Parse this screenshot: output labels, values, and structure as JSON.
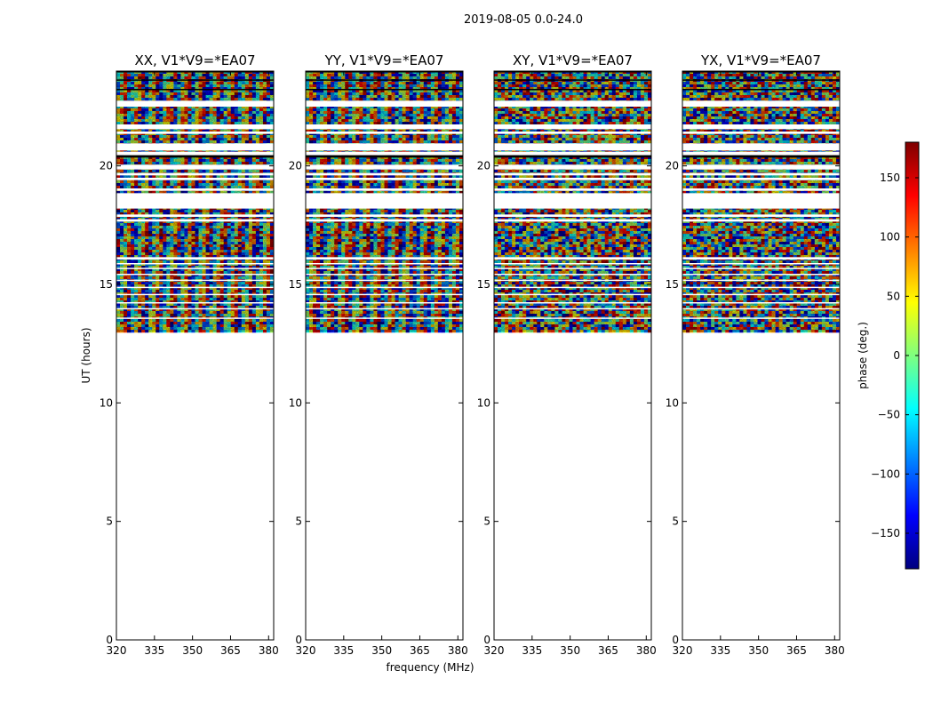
{
  "chart_data": {
    "type": "heatmap",
    "suptitle": "2019-08-05 0.0-24.0",
    "xlabel": "frequency (MHz)",
    "ylabel": "UT (hours)",
    "xlim": [
      320,
      382
    ],
    "ylim": [
      0,
      24
    ],
    "xticks": [
      320,
      335,
      350,
      365,
      380
    ],
    "yticks": [
      0,
      5,
      10,
      15,
      20
    ],
    "data_time_range": [
      13.0,
      24.0
    ],
    "panels": [
      {
        "title": "XX, V1*V9=*EA07",
        "pattern": "fringe"
      },
      {
        "title": "YY, V1*V9=*EA07",
        "pattern": "fringe"
      },
      {
        "title": "XY, V1*V9=*EA07",
        "pattern": "noise"
      },
      {
        "title": "YX, V1*V9=*EA07",
        "pattern": "noise"
      }
    ],
    "flagged_bands": [
      [
        22.5,
        22.75
      ],
      [
        21.55,
        21.75
      ],
      [
        21.35,
        21.45
      ],
      [
        20.65,
        20.95
      ],
      [
        20.45,
        20.6
      ],
      [
        19.85,
        20.05
      ],
      [
        19.6,
        19.7
      ],
      [
        19.4,
        19.5
      ],
      [
        18.95,
        19.05
      ],
      [
        18.2,
        18.85
      ],
      [
        17.85,
        17.95
      ],
      [
        17.65,
        17.75
      ],
      [
        16.05,
        16.15
      ],
      [
        15.85,
        15.9
      ],
      [
        15.65,
        15.7
      ],
      [
        15.4,
        15.45
      ],
      [
        15.15,
        15.2
      ],
      [
        14.85,
        14.9
      ],
      [
        14.55,
        14.6
      ],
      [
        14.2,
        14.25
      ],
      [
        13.95,
        14.0
      ],
      [
        13.55,
        13.6
      ]
    ],
    "black_bands": [
      [
        20.35,
        20.45
      ],
      [
        23.95,
        24.0
      ],
      [
        23.6,
        23.65
      ],
      [
        23.2,
        23.25
      ]
    ],
    "colorbar": {
      "label": "phase (deg.)",
      "vmin": -180,
      "vmax": 180,
      "ticks": [
        -150,
        -100,
        -50,
        0,
        50,
        100,
        150
      ],
      "tick_labels": [
        "−150",
        "−100",
        "−50",
        "0",
        "50",
        "100",
        "150"
      ],
      "colormap": "jet",
      "colors": [
        "#00007f",
        "#0000ff",
        "#007fff",
        "#00ffff",
        "#7fff7f",
        "#ffff00",
        "#ff7f00",
        "#ff0000",
        "#7f0000"
      ]
    }
  }
}
